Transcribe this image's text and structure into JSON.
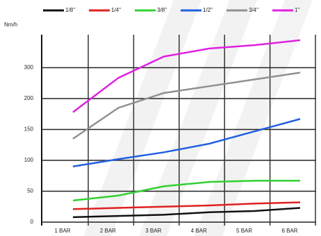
{
  "chart_data": {
    "type": "line",
    "y_label": "Nm/h",
    "categories": [
      "1 BAR",
      "2 BAR",
      "3 BAR",
      "4 BAR",
      "5 BAR",
      "6 BAR"
    ],
    "series": [
      {
        "name": "1/8\"",
        "color": "#111111",
        "values": [
          8,
          10,
          12,
          16,
          18,
          23
        ]
      },
      {
        "name": "1/4\"",
        "color": "#e02020",
        "values": [
          21,
          23,
          25,
          27,
          30,
          32
        ]
      },
      {
        "name": "3/8\"",
        "color": "#30d030",
        "values": [
          35,
          43,
          58,
          65,
          67,
          67
        ]
      },
      {
        "name": "1/2\"",
        "color": "#2060e0",
        "values": [
          90,
          102,
          113,
          127,
          147,
          167
        ]
      },
      {
        "name": "3/4\"",
        "color": "#909090",
        "values": [
          135,
          185,
          218,
          240,
          262,
          284
        ]
      },
      {
        "name": "1\"",
        "color": "#e020e0",
        "values": [
          178,
          267,
          336,
          362,
          373,
          389
        ]
      }
    ],
    "ylim": [
      0,
      400
    ],
    "yticks": [
      0,
      50,
      100,
      150,
      200,
      300
    ],
    "grid": true
  }
}
